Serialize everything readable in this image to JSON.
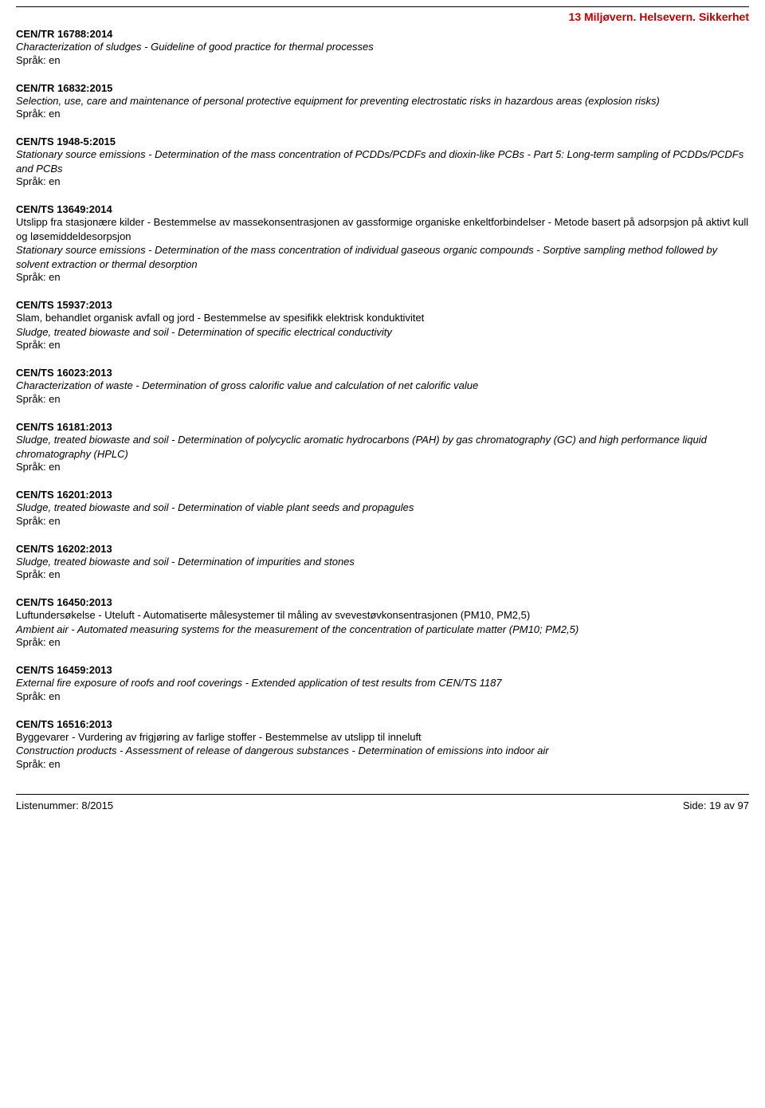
{
  "header": {
    "category": "13  Miljøvern. Helsevern. Sikkerhet"
  },
  "entries": [
    {
      "code": "CEN/TR 16788:2014",
      "desc_en": "Characterization of sludges - Guideline of good practice for thermal processes",
      "lang": "Språk: en"
    },
    {
      "code": "CEN/TR 16832:2015",
      "desc_en": "Selection, use, care and maintenance of personal protective equipment for preventing electrostatic risks in hazardous areas (explosion risks)",
      "lang": "Språk: en"
    },
    {
      "code": "CEN/TS 1948-5:2015",
      "desc_en": "Stationary source emissions - Determination of the mass concentration of PCDDs/PCDFs and dioxin-like PCBs - Part 5: Long-term sampling of PCDDs/PCDFs and PCBs",
      "lang": "Språk: en"
    },
    {
      "code": "CEN/TS 13649:2014",
      "desc_no": "Utslipp fra stasjonære kilder - Bestemmelse av massekonsentrasjonen av gassformige organiske enkeltforbindelser - Metode basert på adsorpsjon på aktivt kull og løsemiddeldesorpsjon",
      "desc_en": "Stationary source emissions - Determination of the mass concentration of individual gaseous organic compounds - Sorptive sampling method followed by solvent extraction or thermal desorption",
      "lang": "Språk: en"
    },
    {
      "code": "CEN/TS 15937:2013",
      "desc_no": "Slam, behandlet organisk avfall og jord - Bestemmelse av spesifikk elektrisk konduktivitet",
      "desc_en": "Sludge, treated biowaste and soil - Determination of specific electrical conductivity",
      "lang": "Språk: en"
    },
    {
      "code": "CEN/TS 16023:2013",
      "desc_en": "Characterization of waste - Determination of gross calorific value and calculation of net calorific value",
      "lang": "Språk: en"
    },
    {
      "code": "CEN/TS 16181:2013",
      "desc_en": "Sludge, treated biowaste and soil - Determination of polycyclic aromatic hydrocarbons (PAH) by gas chromatography (GC) and high performance liquid chromatography (HPLC)",
      "lang": "Språk: en"
    },
    {
      "code": "CEN/TS 16201:2013",
      "desc_en": "Sludge, treated biowaste and soil - Determination of viable plant seeds and propagules",
      "lang": "Språk: en"
    },
    {
      "code": "CEN/TS 16202:2013",
      "desc_en": "Sludge, treated biowaste and soil - Determination of impurities and stones",
      "lang": "Språk: en"
    },
    {
      "code": "CEN/TS 16450:2013",
      "desc_no": "Luftundersøkelse - Uteluft - Automatiserte målesystemer til måling av svevestøvkonsentrasjonen (PM10, PM2,5)",
      "desc_en": "Ambient air - Automated measuring systems for the measurement of the concentration of particulate matter (PM10; PM2,5)",
      "lang": "Språk: en"
    },
    {
      "code": "CEN/TS 16459:2013",
      "desc_en": "External fire exposure of roofs and roof coverings - Extended application of test results from CEN/TS 1187",
      "lang": "Språk: en"
    },
    {
      "code": "CEN/TS 16516:2013",
      "desc_no": "Byggevarer - Vurdering av frigjøring av farlige stoffer - Bestemmelse av utslipp til inneluft",
      "desc_en": "Construction products - Assessment of release of dangerous substances - Determination of emissions into indoor air",
      "lang": "Språk: en"
    }
  ],
  "footer": {
    "left": "Listenummer: 8/2015",
    "right": "Side: 19 av 97"
  }
}
